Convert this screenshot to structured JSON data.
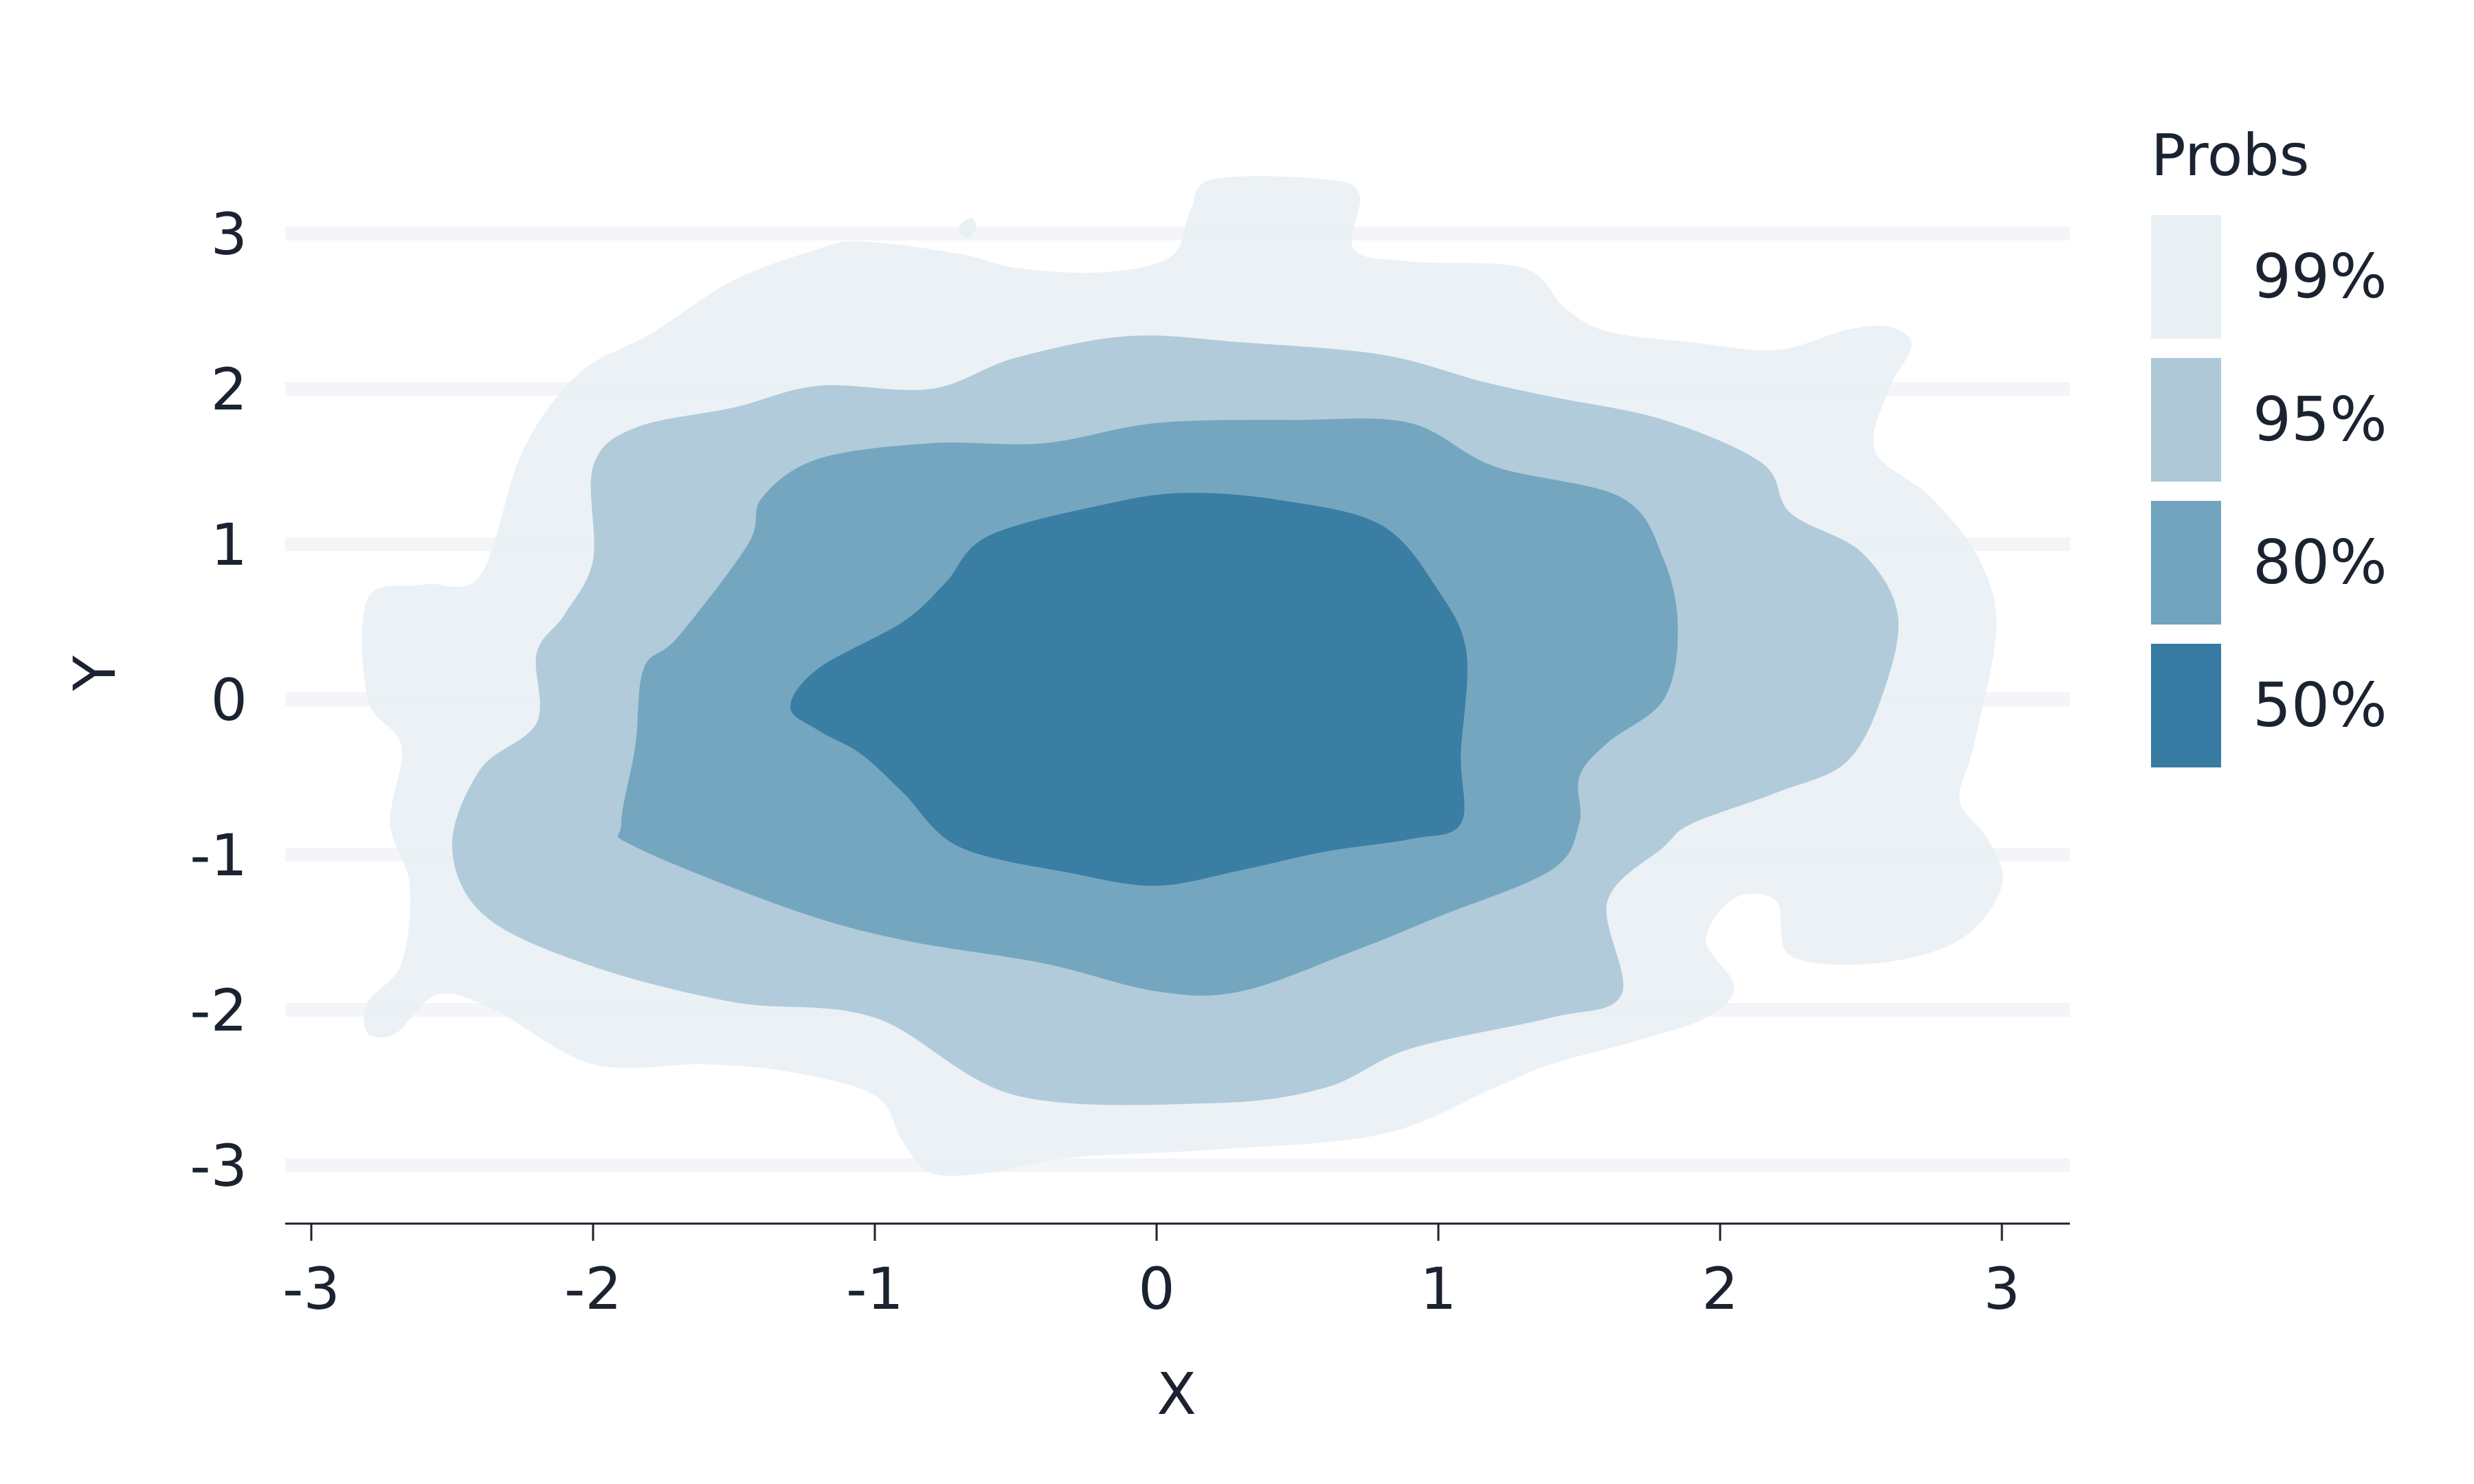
{
  "chart_data": {
    "type": "contour",
    "title": "",
    "xlabel": "X",
    "ylabel": "Y",
    "xlim": [
      -3.1,
      3.25
    ],
    "ylim": [
      -3.35,
      3.4
    ],
    "xticks": [
      -3,
      -2,
      -1,
      0,
      1,
      2,
      3
    ],
    "yticks": [
      -3,
      -2,
      -1,
      0,
      1,
      2,
      3
    ],
    "x_tick_labels": [
      "-3",
      "-2",
      "-1",
      "0",
      "1",
      "2",
      "3"
    ],
    "y_tick_labels": [
      "-3",
      "-2",
      "-1",
      "0",
      "1",
      "2",
      "3"
    ],
    "grid": "horizontal",
    "legend": {
      "title": "Probs",
      "placement": "right",
      "entries": [
        {
          "label": "99%",
          "color": "#e9f0f4"
        },
        {
          "label": "95%",
          "color": "#aec8d8"
        },
        {
          "label": "80%",
          "color": "#72a3bf"
        },
        {
          "label": "50%",
          "color": "#377ba2"
        }
      ]
    },
    "series": [
      {
        "name": "99%",
        "color": "#e9f0f4",
        "points": [
          [
            -2.8,
            0.65
          ],
          [
            -2.6,
            0.74
          ],
          [
            -2.4,
            0.8
          ],
          [
            -2.25,
            1.6
          ],
          [
            -2.05,
            2.1
          ],
          [
            -1.8,
            2.35
          ],
          [
            -1.5,
            2.7
          ],
          [
            -1.2,
            2.9
          ],
          [
            -1.05,
            2.95
          ],
          [
            -0.7,
            2.87
          ],
          [
            -0.5,
            2.78
          ],
          [
            -0.2,
            2.75
          ],
          [
            0.05,
            2.85
          ],
          [
            0.12,
            3.15
          ],
          [
            0.2,
            3.35
          ],
          [
            0.6,
            3.35
          ],
          [
            0.72,
            3.25
          ],
          [
            0.7,
            2.9
          ],
          [
            0.9,
            2.82
          ],
          [
            1.3,
            2.78
          ],
          [
            1.45,
            2.52
          ],
          [
            1.6,
            2.37
          ],
          [
            1.9,
            2.3
          ],
          [
            2.2,
            2.25
          ],
          [
            2.45,
            2.38
          ],
          [
            2.6,
            2.4
          ],
          [
            2.68,
            2.28
          ],
          [
            2.6,
            2.0
          ],
          [
            2.55,
            1.6
          ],
          [
            2.75,
            1.3
          ],
          [
            2.92,
            0.9
          ],
          [
            2.98,
            0.45
          ],
          [
            2.9,
            -0.3
          ],
          [
            2.85,
            -0.65
          ],
          [
            2.95,
            -0.9
          ],
          [
            3.0,
            -1.2
          ],
          [
            2.85,
            -1.55
          ],
          [
            2.55,
            -1.7
          ],
          [
            2.25,
            -1.65
          ],
          [
            2.2,
            -1.3
          ],
          [
            2.05,
            -1.28
          ],
          [
            1.95,
            -1.55
          ],
          [
            2.05,
            -1.85
          ],
          [
            1.95,
            -2.05
          ],
          [
            1.7,
            -2.2
          ],
          [
            1.4,
            -2.35
          ],
          [
            1.2,
            -2.5
          ],
          [
            0.8,
            -2.8
          ],
          [
            0.2,
            -2.9
          ],
          [
            -0.3,
            -2.95
          ],
          [
            -0.6,
            -3.05
          ],
          [
            -0.8,
            -3.05
          ],
          [
            -0.9,
            -2.85
          ],
          [
            -1.0,
            -2.55
          ],
          [
            -1.3,
            -2.4
          ],
          [
            -1.6,
            -2.35
          ],
          [
            -2.0,
            -2.35
          ],
          [
            -2.35,
            -2.0
          ],
          [
            -2.55,
            -1.9
          ],
          [
            -2.7,
            -2.15
          ],
          [
            -2.8,
            -2.15
          ],
          [
            -2.8,
            -1.95
          ],
          [
            -2.68,
            -1.7
          ],
          [
            -2.65,
            -1.2
          ],
          [
            -2.72,
            -0.8
          ],
          [
            -2.68,
            -0.3
          ],
          [
            -2.8,
            0
          ]
        ]
      },
      {
        "name": "95%",
        "color": "#aec8d8",
        "points": [
          [
            -2.0,
            1.5
          ],
          [
            -1.85,
            1.75
          ],
          [
            -1.5,
            1.88
          ],
          [
            -1.2,
            2.02
          ],
          [
            -0.8,
            2.0
          ],
          [
            -0.5,
            2.2
          ],
          [
            -0.1,
            2.34
          ],
          [
            0.3,
            2.3
          ],
          [
            0.8,
            2.22
          ],
          [
            1.15,
            2.05
          ],
          [
            1.4,
            1.95
          ],
          [
            1.8,
            1.8
          ],
          [
            2.15,
            1.52
          ],
          [
            2.25,
            1.2
          ],
          [
            2.5,
            0.95
          ],
          [
            2.63,
            0.55
          ],
          [
            2.58,
            0.05
          ],
          [
            2.45,
            -0.4
          ],
          [
            2.2,
            -0.6
          ],
          [
            1.9,
            -0.8
          ],
          [
            1.8,
            -0.95
          ],
          [
            1.6,
            -1.3
          ],
          [
            1.65,
            -1.9
          ],
          [
            1.4,
            -2.05
          ],
          [
            0.9,
            -2.25
          ],
          [
            0.6,
            -2.5
          ],
          [
            0.2,
            -2.6
          ],
          [
            -0.5,
            -2.55
          ],
          [
            -1.0,
            -2.05
          ],
          [
            -1.5,
            -1.95
          ],
          [
            -2.0,
            -1.72
          ],
          [
            -2.38,
            -1.4
          ],
          [
            -2.5,
            -0.95
          ],
          [
            -2.4,
            -0.45
          ],
          [
            -2.2,
            -0.15
          ],
          [
            -2.2,
            0.3
          ],
          [
            -2.1,
            0.55
          ],
          [
            -2.0,
            0.9
          ]
        ]
      },
      {
        "name": "80%",
        "color": "#72a3bf",
        "points": [
          [
            -1.45,
            1.0
          ],
          [
            -1.4,
            1.3
          ],
          [
            -1.2,
            1.55
          ],
          [
            -0.8,
            1.65
          ],
          [
            -0.4,
            1.65
          ],
          [
            0,
            1.78
          ],
          [
            0.5,
            1.8
          ],
          [
            0.9,
            1.78
          ],
          [
            1.2,
            1.5
          ],
          [
            1.65,
            1.3
          ],
          [
            1.8,
            0.9
          ],
          [
            1.85,
            0.45
          ],
          [
            1.8,
            0.0
          ],
          [
            1.6,
            -0.28
          ],
          [
            1.5,
            -0.5
          ],
          [
            1.5,
            -0.8
          ],
          [
            1.4,
            -1.1
          ],
          [
            1.0,
            -1.4
          ],
          [
            0.7,
            -1.62
          ],
          [
            0.3,
            -1.88
          ],
          [
            0,
            -1.88
          ],
          [
            -0.4,
            -1.7
          ],
          [
            -0.9,
            -1.55
          ],
          [
            -1.3,
            -1.35
          ],
          [
            -1.85,
            -0.95
          ],
          [
            -1.9,
            -0.8
          ],
          [
            -1.85,
            -0.3
          ],
          [
            -1.82,
            0.2
          ],
          [
            -1.7,
            0.4
          ]
        ]
      },
      {
        "name": "50%",
        "color": "#377ba2",
        "points": [
          [
            -0.9,
            0.5
          ],
          [
            -0.75,
            0.75
          ],
          [
            -0.6,
            1.05
          ],
          [
            -0.2,
            1.25
          ],
          [
            0.1,
            1.33
          ],
          [
            0.45,
            1.28
          ],
          [
            0.8,
            1.12
          ],
          [
            1.0,
            0.7
          ],
          [
            1.1,
            0.3
          ],
          [
            1.08,
            -0.35
          ],
          [
            1.08,
            -0.8
          ],
          [
            0.9,
            -0.9
          ],
          [
            0.6,
            -0.98
          ],
          [
            0.3,
            -1.1
          ],
          [
            0,
            -1.2
          ],
          [
            -0.3,
            -1.12
          ],
          [
            -0.7,
            -0.95
          ],
          [
            -0.9,
            -0.6
          ],
          [
            -1.05,
            -0.35
          ],
          [
            -1.2,
            -0.2
          ],
          [
            -1.3,
            -0.05
          ],
          [
            -1.2,
            0.2
          ]
        ]
      }
    ],
    "extra_polygons": [
      {
        "name": "99%-speck",
        "color": "#e9f0f4",
        "points": [
          [
            -0.7,
            3.05
          ],
          [
            -0.66,
            3.1
          ],
          [
            -0.64,
            3.05
          ],
          [
            -0.66,
            2.98
          ],
          [
            -0.69,
            2.98
          ]
        ]
      }
    ]
  }
}
